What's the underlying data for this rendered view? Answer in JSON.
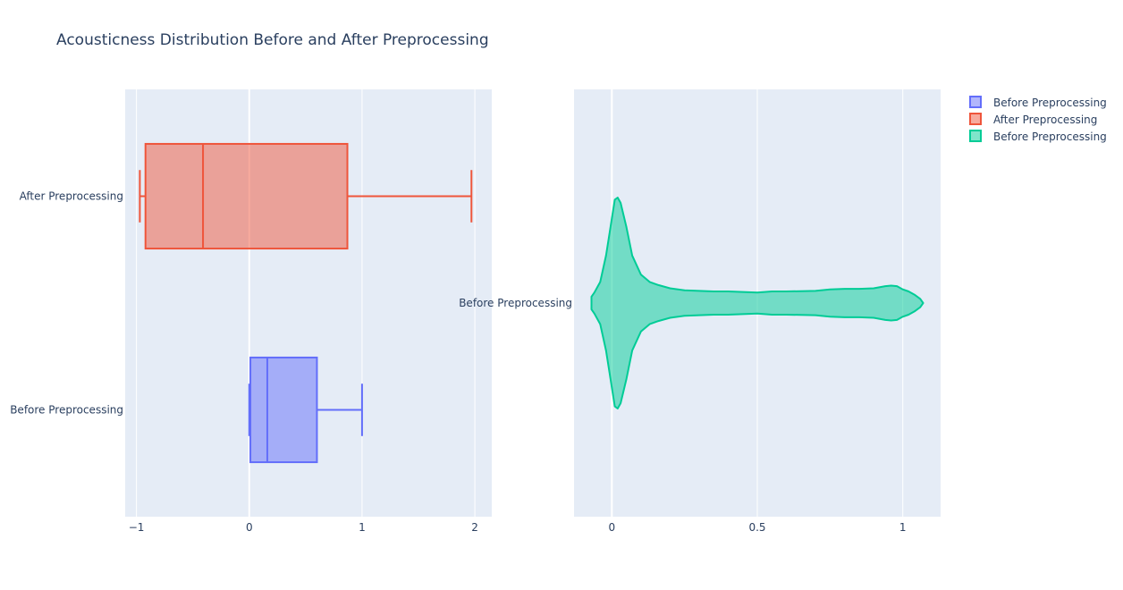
{
  "title": "Acousticness Distribution Before and After Preprocessing",
  "colors": {
    "plot_bg": "#e5ecf6",
    "grid": "#ffffff",
    "text": "#2a3f5f"
  },
  "chart_data": [
    {
      "type": "box",
      "orientation": "horizontal",
      "xlim": [
        -1.1,
        2.15
      ],
      "xticks": [
        -1,
        0,
        1,
        2
      ],
      "xtick_labels": [
        "−1",
        "0",
        "1",
        "2"
      ],
      "grid": true,
      "categories": [
        "After Preprocessing",
        "Before Preprocessing"
      ],
      "series": [
        {
          "name": "After Preprocessing",
          "color": "#EF553B",
          "min": -0.97,
          "q1": -0.92,
          "median": -0.41,
          "q3": 0.87,
          "max": 1.97
        },
        {
          "name": "Before Preprocessing",
          "color": "#636EFA",
          "min": 0.0,
          "q1": 0.01,
          "median": 0.16,
          "q3": 0.6,
          "max": 1.0
        }
      ]
    },
    {
      "type": "violin",
      "orientation": "horizontal",
      "xlim": [
        -0.13,
        1.13
      ],
      "xticks": [
        0,
        0.5,
        1
      ],
      "xtick_labels": [
        "0",
        "0.5",
        "1"
      ],
      "grid": true,
      "category": "Before Preprocessing",
      "series": {
        "name": "Before Preprocessing",
        "color": "#00CC96",
        "x": [
          -0.07,
          -0.06,
          -0.04,
          -0.02,
          0.0,
          0.01,
          0.02,
          0.03,
          0.05,
          0.07,
          0.1,
          0.13,
          0.16,
          0.2,
          0.25,
          0.3,
          0.35,
          0.4,
          0.5,
          0.55,
          0.6,
          0.7,
          0.75,
          0.8,
          0.85,
          0.9,
          0.94,
          0.96,
          0.98,
          1.0,
          1.02,
          1.04,
          1.06,
          1.07
        ],
        "density": [
          0.06,
          0.1,
          0.2,
          0.45,
          0.8,
          0.98,
          1.0,
          0.95,
          0.72,
          0.45,
          0.27,
          0.2,
          0.17,
          0.14,
          0.12,
          0.115,
          0.11,
          0.11,
          0.1,
          0.11,
          0.11,
          0.115,
          0.13,
          0.135,
          0.135,
          0.14,
          0.16,
          0.165,
          0.16,
          0.13,
          0.11,
          0.08,
          0.04,
          0.0
        ]
      }
    }
  ],
  "legend": {
    "position": "top-right",
    "items": [
      {
        "label": "Before Preprocessing",
        "color": "#636EFA"
      },
      {
        "label": "After Preprocessing",
        "color": "#EF553B"
      },
      {
        "label": "Before Preprocessing",
        "color": "#00CC96"
      }
    ]
  }
}
